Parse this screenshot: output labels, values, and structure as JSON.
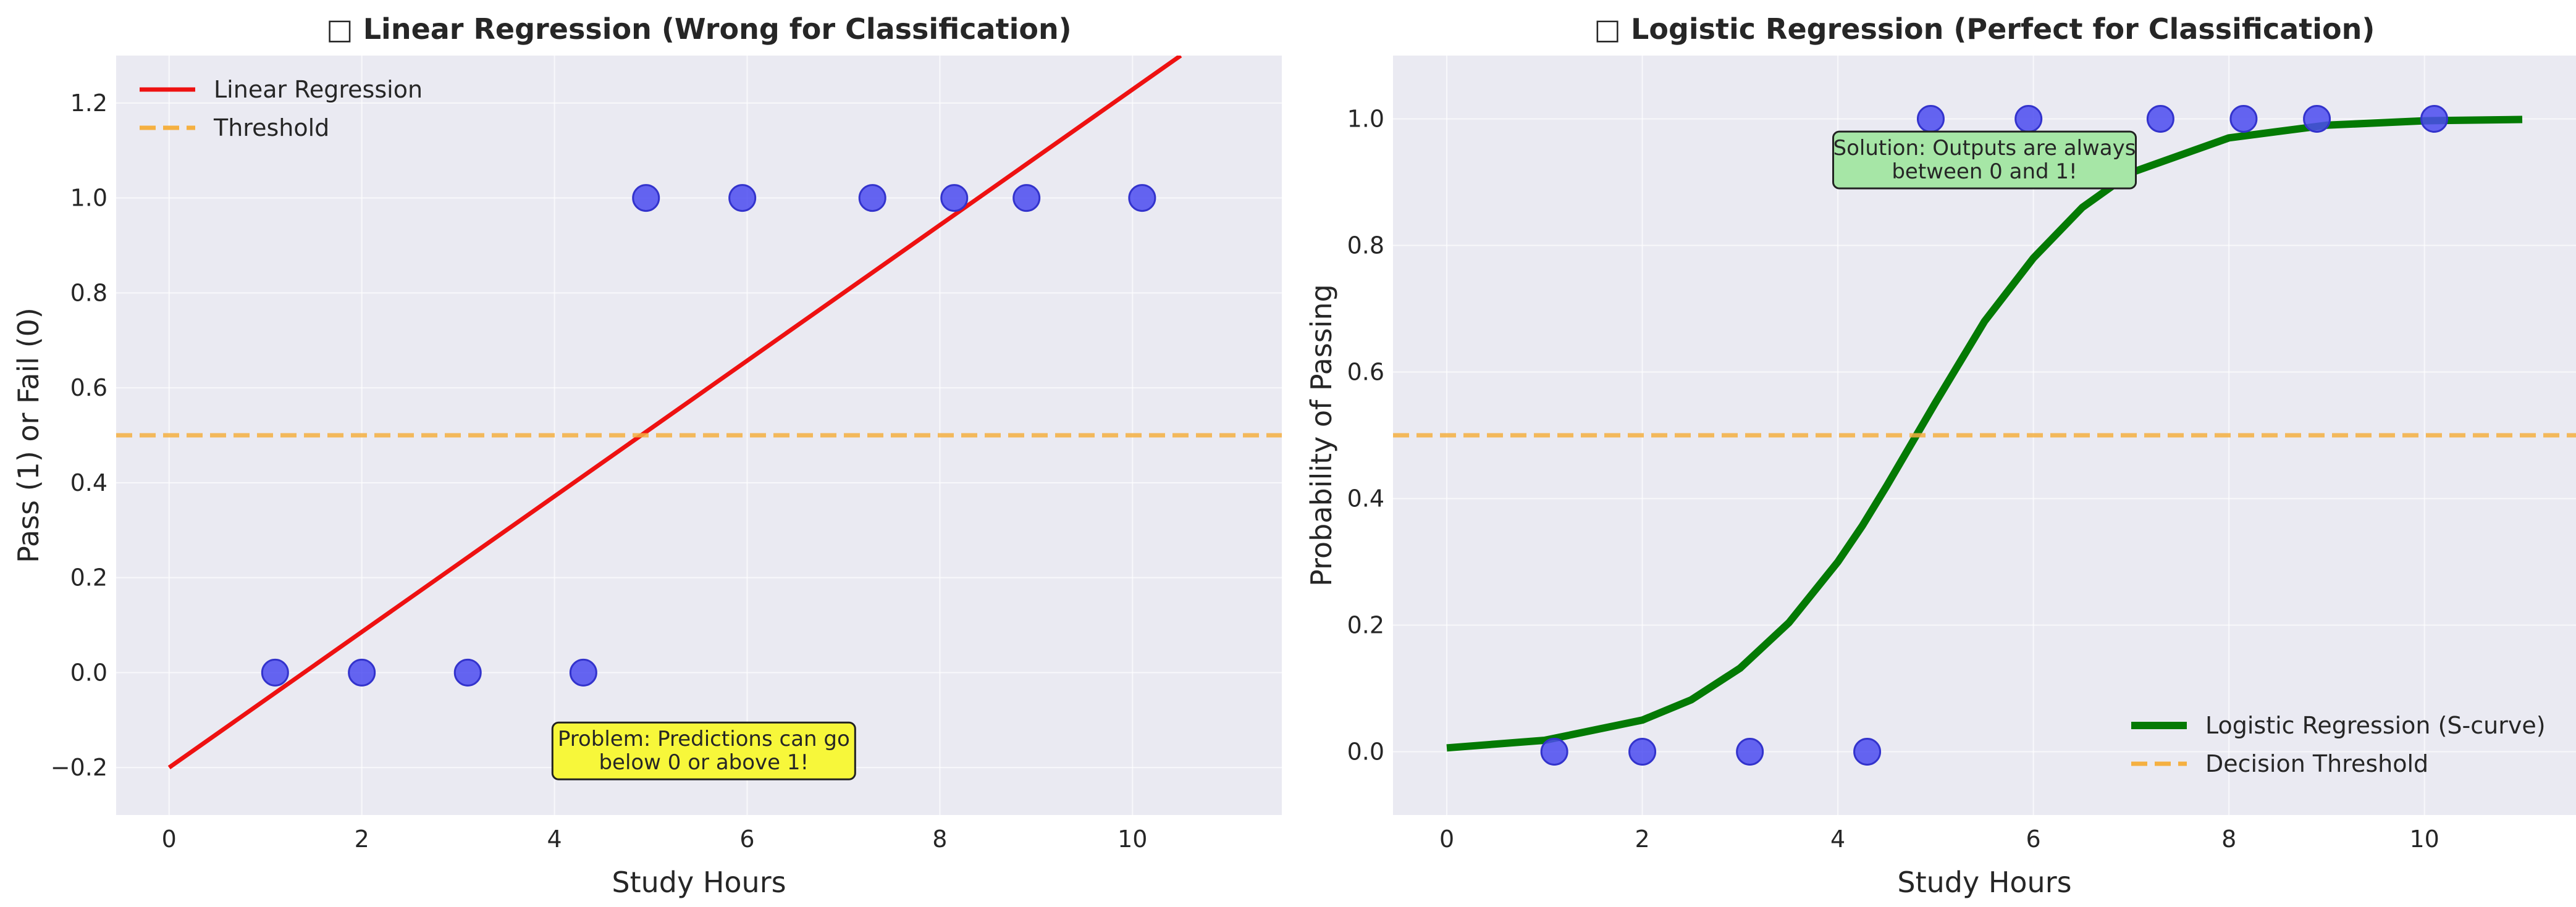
{
  "chart_data": [
    {
      "type": "scatter+line",
      "title": "□ Linear Regression (Wrong for Classification)",
      "xlabel": "Study Hours",
      "ylabel": "Pass (1) or Fail (0)",
      "xlim": [
        -0.55,
        11.55
      ],
      "ylim": [
        -0.3,
        1.3
      ],
      "xticks": [
        0,
        2,
        4,
        6,
        8,
        10
      ],
      "yticks": [
        -0.2,
        0.0,
        0.2,
        0.4,
        0.6,
        0.8,
        1.0,
        1.2
      ],
      "ytick_labels": [
        "−0.2",
        "0.0",
        "0.2",
        "0.4",
        "0.6",
        "0.8",
        "1.0",
        "1.2"
      ],
      "grid": true,
      "legend_position": "upper-left",
      "points": {
        "x": [
          1.1,
          2.0,
          3.1,
          4.3,
          4.95,
          5.95,
          7.3,
          8.15,
          8.9,
          10.1
        ],
        "y": [
          0,
          0,
          0,
          0,
          1,
          1,
          1,
          1,
          1,
          1
        ],
        "color": "#4b4bf0"
      },
      "lines": [
        {
          "name": "Linear Regression",
          "x": [
            0,
            10.5
          ],
          "y": [
            -0.2,
            1.3
          ],
          "color": "#ee1111",
          "style": "solid"
        },
        {
          "name": "Threshold",
          "y_const": 0.5,
          "color": "#f5b041",
          "style": "dashed"
        }
      ],
      "annotation": {
        "lines": [
          "Problem: Predictions can go",
          "below 0 or above 1!"
        ],
        "x": 5.55,
        "y": -0.165,
        "bg": "#f7f73a"
      }
    },
    {
      "type": "scatter+line",
      "title": "□ Logistic Regression (Perfect for Classification)",
      "xlabel": "Study Hours",
      "ylabel": "Probability of Passing",
      "xlim": [
        -0.55,
        11.55
      ],
      "ylim": [
        -0.1,
        1.1
      ],
      "xticks": [
        0,
        2,
        4,
        6,
        8,
        10
      ],
      "yticks": [
        0.0,
        0.2,
        0.4,
        0.6,
        0.8,
        1.0
      ],
      "ytick_labels": [
        "0.0",
        "0.2",
        "0.4",
        "0.6",
        "0.8",
        "1.0"
      ],
      "grid": true,
      "legend_position": "lower-right",
      "points": {
        "x": [
          1.1,
          2.0,
          3.1,
          4.3,
          4.95,
          5.95,
          7.3,
          8.15,
          8.9,
          10.1
        ],
        "y": [
          0,
          0,
          0,
          0,
          1,
          1,
          1,
          1,
          1,
          1
        ],
        "color": "#4b4bf0"
      },
      "lines": [
        {
          "name": "Logistic Regression (S-curve)",
          "x": [
            0,
            1,
            2,
            2.5,
            3,
            3.5,
            4,
            4.25,
            4.5,
            4.75,
            5,
            5.5,
            6,
            6.5,
            7,
            8,
            9,
            10,
            11
          ],
          "y": [
            0.006,
            0.018,
            0.05,
            0.082,
            0.132,
            0.204,
            0.3,
            0.357,
            0.42,
            0.486,
            0.552,
            0.68,
            0.78,
            0.86,
            0.915,
            0.97,
            0.99,
            0.997,
            0.999
          ],
          "color": "#047a04",
          "style": "solid"
        },
        {
          "name": "Decision Threshold",
          "y_const": 0.5,
          "color": "#f5b041",
          "style": "dashed"
        }
      ],
      "annotation": {
        "lines": [
          "Solution: Outputs are always",
          "between 0 and 1!"
        ],
        "x": 5.5,
        "y": 0.935,
        "bg": "#a6e6a6"
      }
    }
  ]
}
